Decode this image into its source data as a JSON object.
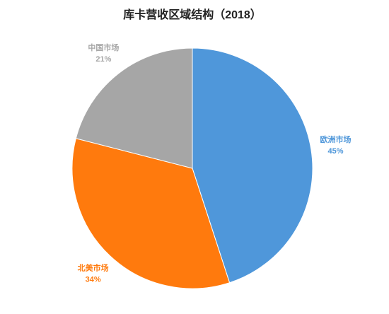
{
  "chart_data": {
    "type": "pie",
    "title": "库卡营收区域结构（2018）",
    "categories": [
      "欧洲市场",
      "北美市场",
      "中国市场"
    ],
    "values": [
      45,
      34,
      21
    ],
    "value_labels": [
      "45%",
      "34%",
      "21%"
    ],
    "colors": [
      "#4f97da",
      "#ff7a0d",
      "#a6a6a6"
    ]
  }
}
